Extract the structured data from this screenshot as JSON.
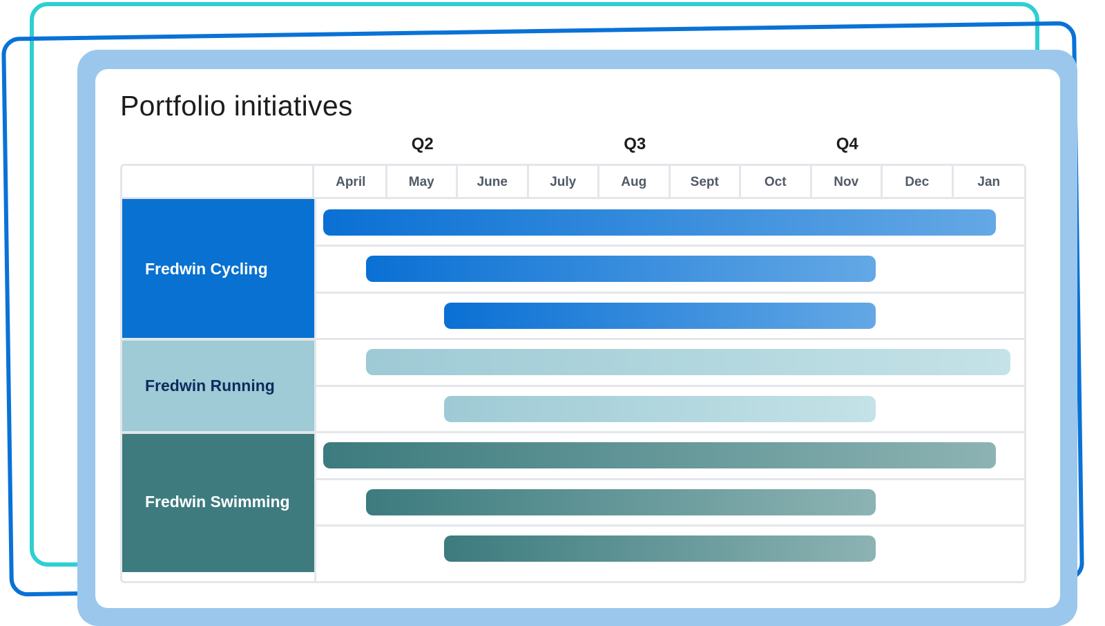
{
  "chart_data": {
    "type": "gantt",
    "title": "Portfolio initiatives",
    "quarters": [
      "Q2",
      "Q3",
      "Q4"
    ],
    "months": [
      "April",
      "May",
      "June",
      "July",
      "Aug",
      "Sept",
      "Oct",
      "Nov",
      "Dec",
      "Jan"
    ],
    "groups": [
      {
        "name": "Fredwin Cycling",
        "color": "#0871D1",
        "text_color": "#FFFFFF",
        "bar_gradient": [
          "#0A70D4",
          "#64A8E5"
        ],
        "bars": [
          {
            "start": 0.1,
            "end": 9.6
          },
          {
            "start": 0.7,
            "end": 7.9
          },
          {
            "start": 1.8,
            "end": 7.9
          }
        ]
      },
      {
        "name": "Fredwin Running",
        "color": "#9ECBD6",
        "text_color": "#0E2B5C",
        "bar_gradient": [
          "#9ECAD5",
          "#C4E2E7"
        ],
        "bars": [
          {
            "start": 0.7,
            "end": 10.0
          },
          {
            "start": 1.8,
            "end": 7.9
          }
        ]
      },
      {
        "name": "Fredwin Swimming",
        "color": "#3D7B7F",
        "text_color": "#FFFFFF",
        "bar_gradient": [
          "#3C7B7E",
          "#8DB3B3"
        ],
        "bars": [
          {
            "start": 0.1,
            "end": 9.6
          },
          {
            "start": 0.7,
            "end": 7.9
          },
          {
            "start": 1.8,
            "end": 7.9
          }
        ]
      }
    ]
  }
}
